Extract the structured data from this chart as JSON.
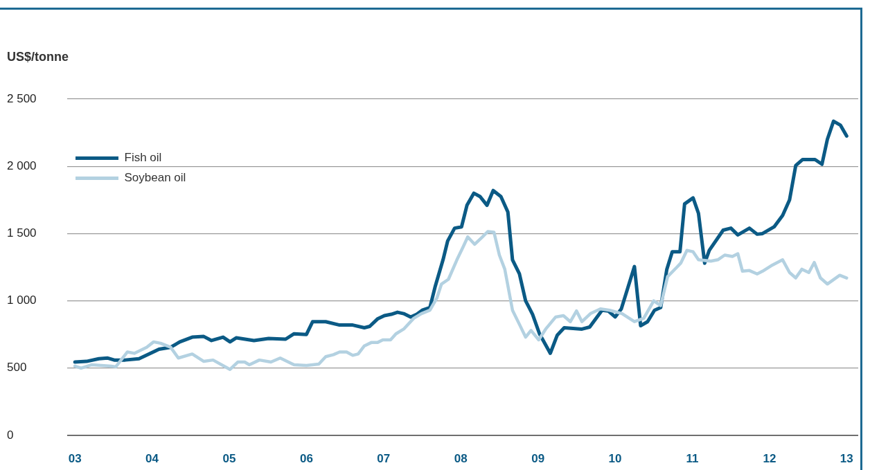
{
  "chart_data": {
    "type": "line",
    "ylabel": "US$/tonne",
    "legend": "top",
    "grid": "y",
    "marker": "none",
    "line_style": "solid",
    "xlim": [
      2002.9,
      2013.15
    ],
    "xticks": [
      {
        "value": 2003,
        "label": "03"
      },
      {
        "value": 2004,
        "label": "04"
      },
      {
        "value": 2005,
        "label": "05"
      },
      {
        "value": 2006,
        "label": "06"
      },
      {
        "value": 2007,
        "label": "07"
      },
      {
        "value": 2008,
        "label": "08"
      },
      {
        "value": 2009,
        "label": "09"
      },
      {
        "value": 2010,
        "label": "10"
      },
      {
        "value": 2011,
        "label": "11"
      },
      {
        "value": 2012,
        "label": "12"
      },
      {
        "value": 2013,
        "label": "13"
      }
    ],
    "ylim": [
      0,
      2500
    ],
    "yticks": [
      0,
      500,
      {
        "value": 1000,
        "label": "1 000"
      },
      {
        "value": 1500,
        "label": "1 500"
      },
      {
        "value": 2000,
        "label": "2 000"
      },
      {
        "value": 2500,
        "label": "2 500"
      }
    ],
    "series": [
      {
        "name": "Fish oil",
        "color": "#0b5a85",
        "x": [
          2003,
          2003.15,
          2003.31,
          2003.42,
          2003.51,
          2003.65,
          2003.83,
          2004.09,
          2004.24,
          2004.36,
          2004.52,
          2004.67,
          2004.77,
          2004.92,
          2005.01,
          2005.09,
          2005.32,
          2005.51,
          2005.73,
          2005.84,
          2006,
          2006.08,
          2006.25,
          2006.43,
          2006.6,
          2006.75,
          2006.82,
          2006.92,
          2007.01,
          2007.1,
          2007.18,
          2007.26,
          2007.35,
          2007.43,
          2007.5,
          2007.6,
          2007.67,
          2007.77,
          2007.83,
          2007.92,
          2008.01,
          2008.08,
          2008.17,
          2008.25,
          2008.34,
          2008.42,
          2008.52,
          2008.61,
          2008.67,
          2008.76,
          2008.84,
          2008.93,
          2009.02,
          2009.16,
          2009.25,
          2009.34,
          2009.57,
          2009.67,
          2009.83,
          2009.91,
          2010,
          2010.08,
          2010.25,
          2010.33,
          2010.42,
          2010.51,
          2010.59,
          2010.67,
          2010.74,
          2010.84,
          2010.9,
          2011.01,
          2011.08,
          2011.16,
          2011.22,
          2011.4,
          2011.5,
          2011.59,
          2011.74,
          2011.84,
          2011.91,
          2012.06,
          2012.17,
          2012.26,
          2012.34,
          2012.43,
          2012.59,
          2012.68,
          2012.75,
          2012.83,
          2012.92,
          2013
        ],
        "values": [
          545,
          550,
          570,
          575,
          560,
          560,
          570,
          640,
          655,
          695,
          730,
          735,
          705,
          730,
          695,
          725,
          705,
          720,
          715,
          755,
          750,
          845,
          845,
          820,
          820,
          800,
          810,
          865,
          890,
          900,
          915,
          905,
          880,
          900,
          930,
          950,
          1110,
          1305,
          1445,
          1540,
          1550,
          1710,
          1800,
          1775,
          1710,
          1820,
          1775,
          1660,
          1305,
          1200,
          1000,
          900,
          755,
          610,
          745,
          800,
          790,
          805,
          930,
          925,
          880,
          940,
          1255,
          815,
          845,
          930,
          950,
          1235,
          1365,
          1365,
          1720,
          1765,
          1650,
          1280,
          1375,
          1525,
          1540,
          1490,
          1540,
          1495,
          1500,
          1550,
          1635,
          1750,
          2005,
          2050,
          2050,
          2015,
          2200,
          2335,
          2305,
          2225
        ]
      },
      {
        "name": "Soybean oil",
        "color": "#b3d1e1",
        "x": [
          2003,
          2003.08,
          2003.22,
          2003.47,
          2003.53,
          2003.68,
          2003.77,
          2003.93,
          2004.02,
          2004.11,
          2004.24,
          2004.34,
          2004.52,
          2004.67,
          2004.79,
          2005.01,
          2005.11,
          2005.2,
          2005.26,
          2005.39,
          2005.54,
          2005.66,
          2005.84,
          2006,
          2006.16,
          2006.25,
          2006.35,
          2006.43,
          2006.52,
          2006.6,
          2006.67,
          2006.75,
          2006.84,
          2006.92,
          2006.99,
          2007.09,
          2007.16,
          2007.26,
          2007.39,
          2007.49,
          2007.6,
          2007.69,
          2007.75,
          2007.84,
          2007.95,
          2008.03,
          2008.09,
          2008.18,
          2008.28,
          2008.35,
          2008.43,
          2008.5,
          2008.57,
          2008.67,
          2008.76,
          2008.84,
          2008.91,
          2009.01,
          2009.1,
          2009.23,
          2009.33,
          2009.42,
          2009.5,
          2009.57,
          2009.68,
          2009.81,
          2009.93,
          2010.09,
          2010.25,
          2010.37,
          2010.5,
          2010.59,
          2010.68,
          2010.8,
          2010.85,
          2010.93,
          2011.01,
          2011.08,
          2011.24,
          2011.33,
          2011.42,
          2011.52,
          2011.59,
          2011.65,
          2011.74,
          2011.84,
          2011.91,
          2012.02,
          2012.17,
          2012.26,
          2012.34,
          2012.42,
          2012.51,
          2012.58,
          2012.66,
          2012.75,
          2012.91,
          2013
        ],
        "values": [
          515,
          500,
          525,
          515,
          510,
          620,
          610,
          655,
          695,
          685,
          655,
          575,
          605,
          550,
          560,
          490,
          545,
          545,
          525,
          560,
          545,
          575,
          525,
          520,
          530,
          585,
          600,
          620,
          620,
          595,
          605,
          665,
          690,
          690,
          710,
          710,
          755,
          790,
          870,
          905,
          930,
          1020,
          1125,
          1160,
          1305,
          1400,
          1475,
          1420,
          1475,
          1515,
          1510,
          1340,
          1235,
          930,
          825,
          730,
          780,
          710,
          790,
          880,
          890,
          845,
          925,
          845,
          905,
          940,
          930,
          905,
          845,
          870,
          1000,
          965,
          1180,
          1250,
          1280,
          1375,
          1365,
          1305,
          1295,
          1305,
          1340,
          1330,
          1350,
          1220,
          1225,
          1200,
          1220,
          1260,
          1305,
          1210,
          1170,
          1235,
          1210,
          1285,
          1170,
          1125,
          1190,
          1170
        ]
      }
    ]
  }
}
